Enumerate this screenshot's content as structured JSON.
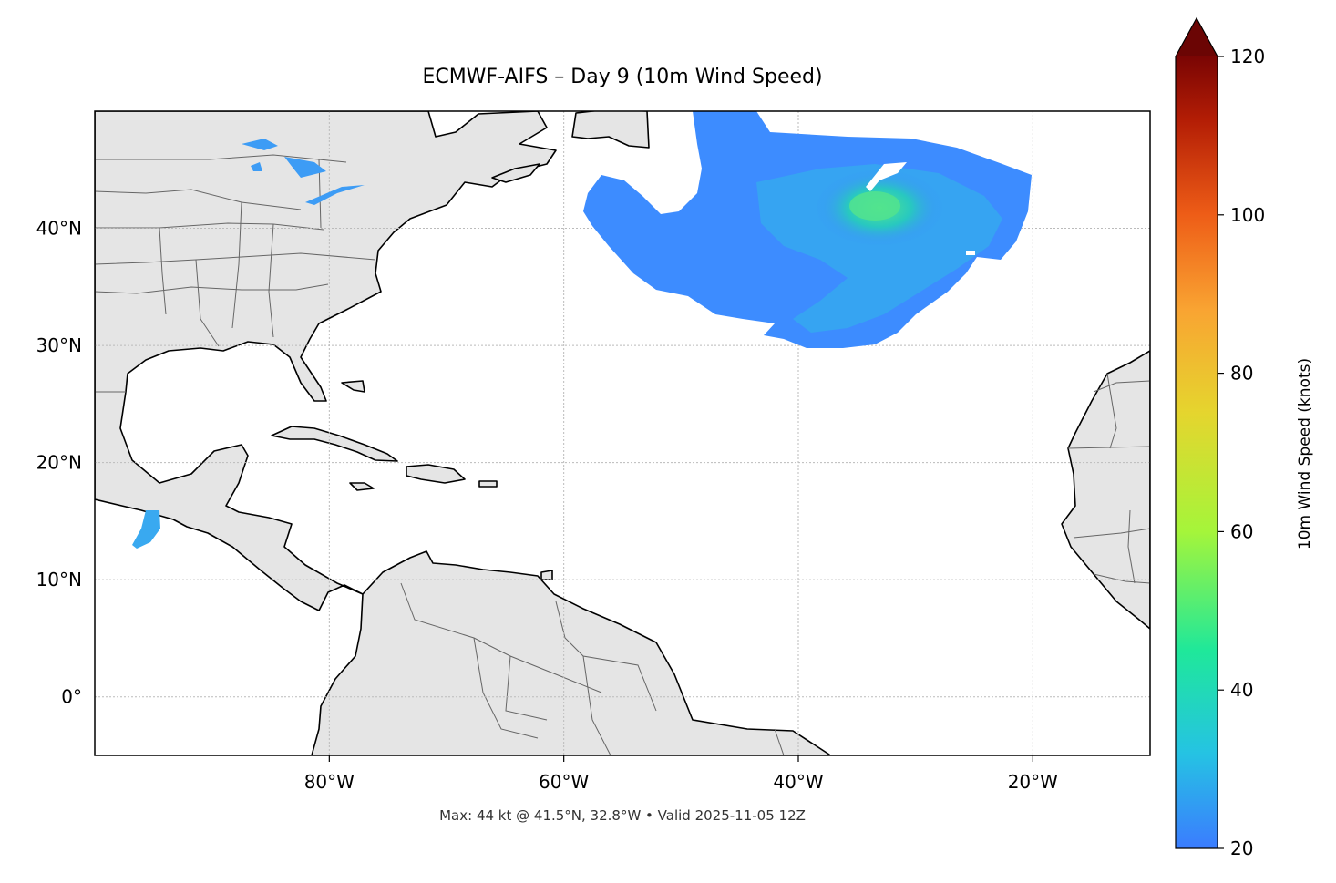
{
  "title": "ECMWF-AIFS – Day 9 (10m Wind Speed)",
  "footer": "Max: 44 kt @ 41.5°N, 32.8°W • Valid 2025-11-05 12Z",
  "map": {
    "extent_lon": [
      -100,
      -10
    ],
    "extent_lat": [
      -5,
      50
    ],
    "lon_ticks": [
      {
        "value": -80,
        "label": "80°W"
      },
      {
        "value": -60,
        "label": "60°W"
      },
      {
        "value": -40,
        "label": "40°W"
      },
      {
        "value": -20,
        "label": "20°W"
      }
    ],
    "lat_ticks": [
      {
        "value": 40,
        "label": "40°N"
      },
      {
        "value": 30,
        "label": "30°N"
      },
      {
        "value": 20,
        "label": "20°N"
      },
      {
        "value": 10,
        "label": "10°N"
      },
      {
        "value": 0,
        "label": "0°"
      }
    ],
    "gridlines": true,
    "land_color": "#e5e5e5",
    "coastline_color": "#000000",
    "border_color": "#666666"
  },
  "wind_field": {
    "max_value_kt": 44,
    "max_location": {
      "lat": 41.5,
      "lon": -32.8
    },
    "core_color": "#2fe08f",
    "mid_color": "#27b9e8",
    "edge_color": "#3d8cff"
  },
  "colorbar": {
    "label": "10m Wind Speed (knots)",
    "min": 20,
    "max": 120,
    "extend": "max",
    "ticks": [
      {
        "value": 20,
        "label": "20"
      },
      {
        "value": 40,
        "label": "40"
      },
      {
        "value": 60,
        "label": "60"
      },
      {
        "value": 80,
        "label": "80"
      },
      {
        "value": 100,
        "label": "100"
      },
      {
        "value": 120,
        "label": "120"
      }
    ],
    "colors": [
      "#3b7cff",
      "#25c3e3",
      "#1fe89a",
      "#a5f53a",
      "#e5d52e",
      "#f9a432",
      "#ee5d17",
      "#b31d05",
      "#6b0504"
    ]
  }
}
